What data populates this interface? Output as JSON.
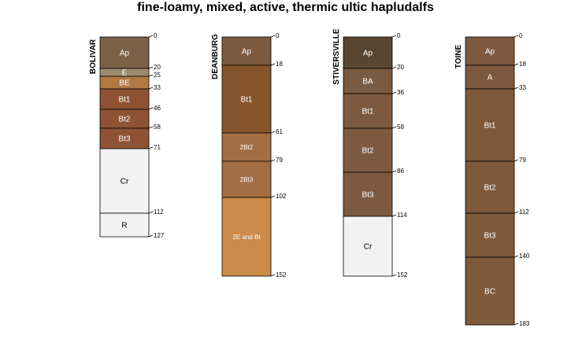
{
  "title": "fine-loamy, mixed, active, thermic ultic hapludalfs",
  "chart_data": {
    "type": "soil-profile",
    "depth_unit": "cm",
    "profiles": [
      {
        "name": "BOLIVAR",
        "horizons": [
          {
            "name": "Ap",
            "top": 0,
            "bottom": 20,
            "color": "#7a6146"
          },
          {
            "name": "E",
            "top": 20,
            "bottom": 25,
            "color": "#9d8a6d"
          },
          {
            "name": "BE",
            "top": 25,
            "bottom": 33,
            "color": "#b17842"
          },
          {
            "name": "Bt1",
            "top": 33,
            "bottom": 46,
            "color": "#8f5234"
          },
          {
            "name": "Bt2",
            "top": 46,
            "bottom": 58,
            "color": "#8f5234"
          },
          {
            "name": "Bt3",
            "top": 58,
            "bottom": 71,
            "color": "#8f5234"
          },
          {
            "name": "Cr",
            "top": 71,
            "bottom": 112,
            "color": "#f2f2f2"
          },
          {
            "name": "R",
            "top": 112,
            "bottom": 127,
            "color": "#f2f2f2"
          }
        ]
      },
      {
        "name": "DEANBURG",
        "horizons": [
          {
            "name": "Ap",
            "top": 0,
            "bottom": 18,
            "color": "#7d5b41"
          },
          {
            "name": "Bt1",
            "top": 18,
            "bottom": 61,
            "color": "#87552b"
          },
          {
            "name": "2Bt2",
            "top": 61,
            "bottom": 79,
            "color": "#a46e44"
          },
          {
            "name": "2Bt3",
            "top": 79,
            "bottom": 102,
            "color": "#a46e44"
          },
          {
            "name": "2E and Bt",
            "top": 102,
            "bottom": 152,
            "color": "#ca8a48"
          }
        ]
      },
      {
        "name": "STIVERSVILLE",
        "horizons": [
          {
            "name": "Ap",
            "top": 0,
            "bottom": 20,
            "color": "#5a4630"
          },
          {
            "name": "BA",
            "top": 20,
            "bottom": 36,
            "color": "#7a5a40"
          },
          {
            "name": "Bt1",
            "top": 36,
            "bottom": 58,
            "color": "#7d5a3f"
          },
          {
            "name": "Bt2",
            "top": 58,
            "bottom": 86,
            "color": "#7d5a3f"
          },
          {
            "name": "Bt3",
            "top": 86,
            "bottom": 114,
            "color": "#7d5a3f"
          },
          {
            "name": "Cr",
            "top": 114,
            "bottom": 152,
            "color": "#f2f2f2"
          }
        ]
      },
      {
        "name": "TOINE",
        "horizons": [
          {
            "name": "Ap",
            "top": 0,
            "bottom": 18,
            "color": "#7d5a3f"
          },
          {
            "name": "A",
            "top": 18,
            "bottom": 33,
            "color": "#7d5a3f"
          },
          {
            "name": "Bt1",
            "top": 33,
            "bottom": 79,
            "color": "#7d5a3c"
          },
          {
            "name": "Bt2",
            "top": 79,
            "bottom": 112,
            "color": "#7d5a3c"
          },
          {
            "name": "Bt3",
            "top": 112,
            "bottom": 140,
            "color": "#7d5a3c"
          },
          {
            "name": "BC",
            "top": 140,
            "bottom": 183,
            "color": "#7d5a3c"
          }
        ]
      }
    ]
  }
}
